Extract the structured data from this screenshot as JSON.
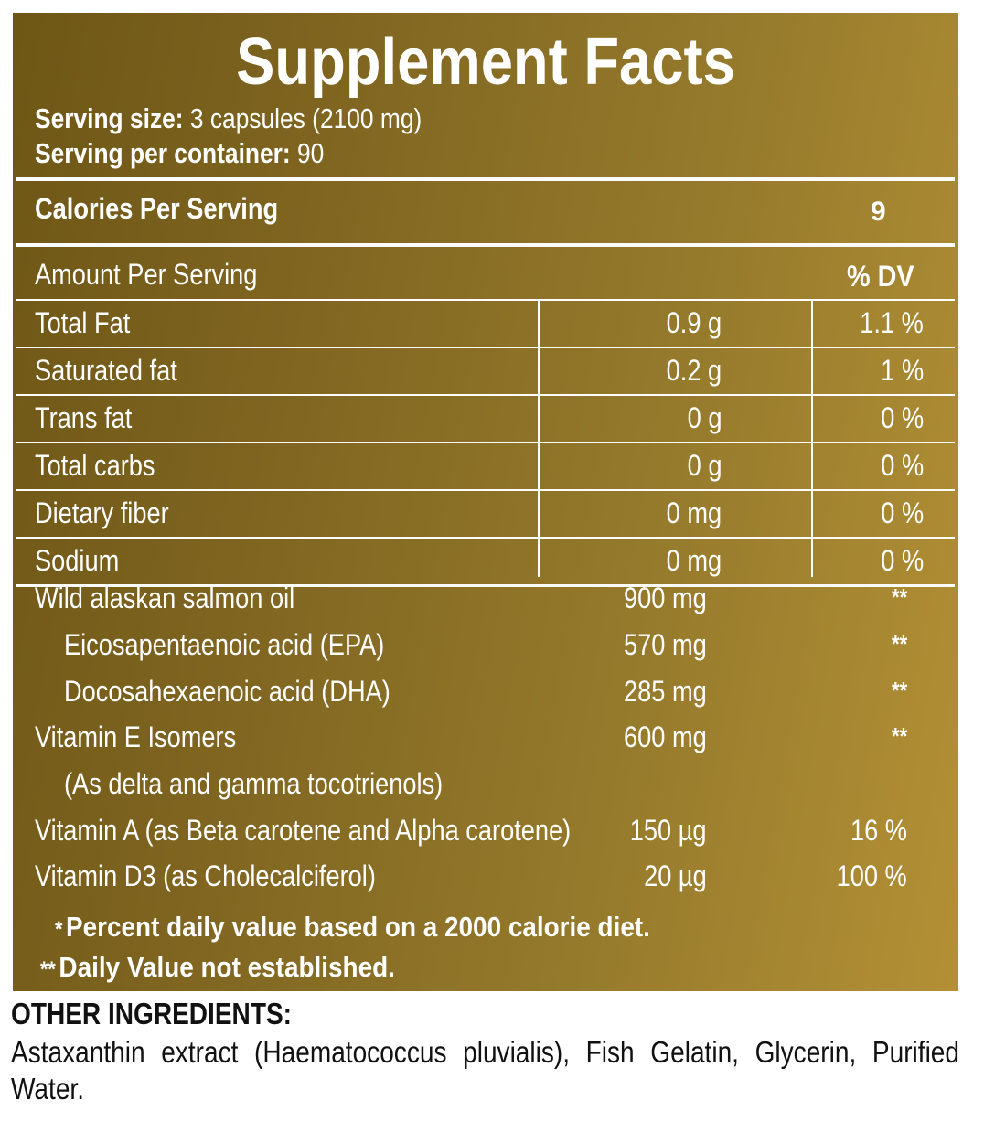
{
  "label": {
    "title": "Supplement Facts",
    "serving_size_label": "Serving size:",
    "serving_size_value": " 3 capsules (2100 mg)",
    "servings_label": "Serving per container:",
    "servings_value": " 90",
    "calories_label": "Calories Per Serving",
    "calories_value": "9",
    "amount_header": "Amount Per Serving",
    "dv_header": "% DV"
  },
  "macros": [
    {
      "name": "Total Fat",
      "amount": "0.9 g",
      "dv": "1.1 %"
    },
    {
      "name": "Saturated fat",
      "amount": "0.2 g",
      "dv": "1 %"
    },
    {
      "name": "Trans fat",
      "amount": "0 g",
      "dv": "0 %"
    },
    {
      "name": "Total carbs",
      "amount": "0 g",
      "dv": "0 %"
    },
    {
      "name": "Dietary fiber",
      "amount": "0 mg",
      "dv": "0 %"
    },
    {
      "name": "Sodium",
      "amount": "0 mg",
      "dv": "0 %"
    }
  ],
  "nutrients": [
    {
      "name": "Wild alaskan salmon oil",
      "amount": "900 mg",
      "dv": "**"
    },
    {
      "name": "Eicosapentaenoic acid (EPA)",
      "amount": "570 mg",
      "dv": "**"
    },
    {
      "name": "Docosahexaenoic acid (DHA)",
      "amount": "285 mg",
      "dv": "**"
    },
    {
      "name": "Vitamin E Isomers",
      "amount": "600 mg",
      "dv": "**"
    },
    {
      "name": "(As delta and gamma tocotrienols)",
      "amount": "",
      "dv": ""
    },
    {
      "name": "Vitamin A (as Beta carotene and Alpha carotene)",
      "amount": "150 µg",
      "dv": "16 %"
    },
    {
      "name": "Vitamin D3 (as Cholecalciferol)",
      "amount": "20 µg",
      "dv": "100 %"
    }
  ],
  "footnotes": {
    "note1_mark": "*",
    "note1_text": "Percent daily value based on a 2000 calorie diet.",
    "note2_mark": "**",
    "note2_text": "Daily Value not established."
  },
  "other": {
    "title": "OTHER INGREDIENTS:",
    "text": "Astaxanthin extract (Haematococcus pluvialis), Fish Gelatin, Glycerin, Purified Water."
  },
  "colors": {
    "panel_gradient_start": "#6e5616",
    "panel_gradient_end": "#b39035",
    "text_on_panel": "#ffffff"
  }
}
